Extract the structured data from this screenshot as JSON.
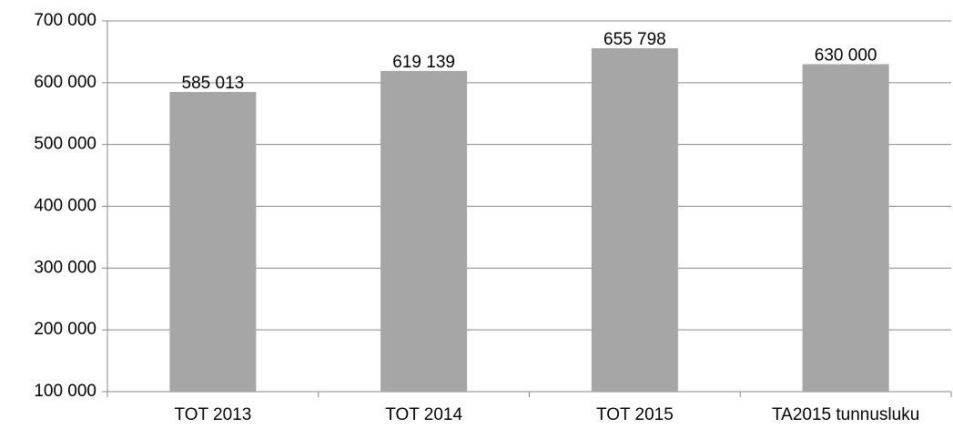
{
  "chart_data": {
    "type": "bar",
    "categories": [
      "TOT 2013",
      "TOT 2014",
      "TOT 2015",
      "TA2015 tunnusluku"
    ],
    "values": [
      585013,
      619139,
      655798,
      630000
    ],
    "value_labels": [
      "585 013",
      "619 139",
      "655 798",
      "630 000"
    ],
    "color": "#a6a6a6",
    "ylim": [
      100000,
      700000
    ],
    "yticks": [
      {
        "value": 100000,
        "label": "100 000"
      },
      {
        "value": 200000,
        "label": "200 000"
      },
      {
        "value": 300000,
        "label": "300 000"
      },
      {
        "value": 400000,
        "label": "400 000"
      },
      {
        "value": 500000,
        "label": "500 000"
      },
      {
        "value": 600000,
        "label": "600 000"
      },
      {
        "value": 700000,
        "label": "700 000"
      }
    ],
    "grid": true
  }
}
